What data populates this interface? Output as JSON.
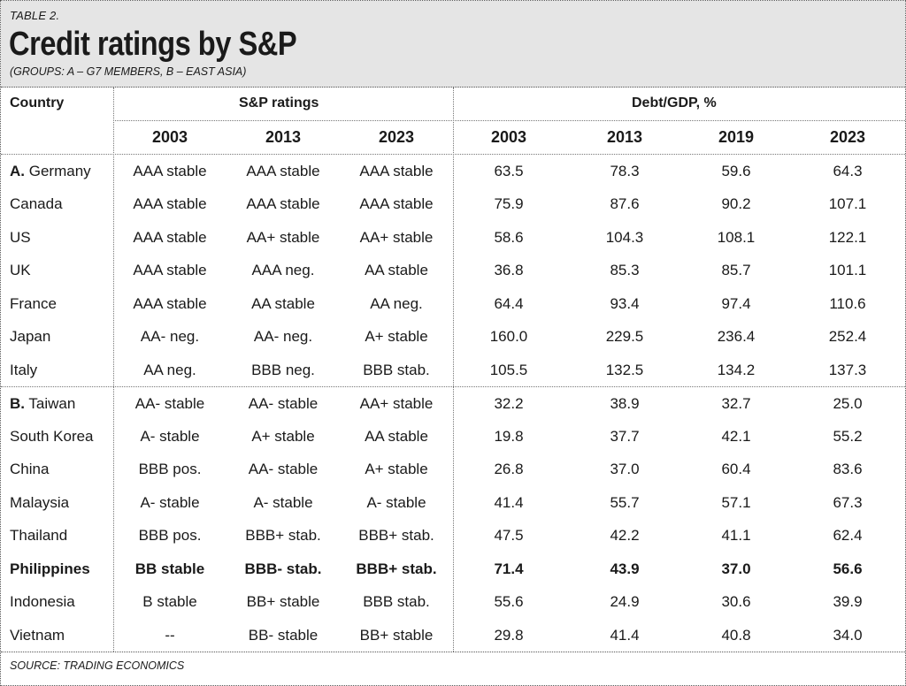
{
  "header": {
    "table_label": "TABLE 2.",
    "title": "Credit ratings by S&P",
    "subtitle": "(GROUPS: A – G7 MEMBERS, B – EAST ASIA)"
  },
  "columns": {
    "country": "Country",
    "ratings_group": "S&P ratings",
    "debt_group": "Debt/GDP, %",
    "rating_years": [
      "2003",
      "2013",
      "2023"
    ],
    "debt_years": [
      "2003",
      "2013",
      "2019",
      "2023"
    ]
  },
  "rows": [
    {
      "group": "A.",
      "country": "Germany",
      "ratings": [
        "AAA stable",
        "AAA stable",
        "AAA stable"
      ],
      "debt": [
        "63.5",
        "78.3",
        "59.6",
        "64.3"
      ]
    },
    {
      "group": "",
      "country": "Canada",
      "ratings": [
        "AAA stable",
        "AAA stable",
        "AAA stable"
      ],
      "debt": [
        "75.9",
        "87.6",
        "90.2",
        "107.1"
      ]
    },
    {
      "group": "",
      "country": "US",
      "ratings": [
        "AAA stable",
        "AA+ stable",
        "AA+ stable"
      ],
      "debt": [
        "58.6",
        "104.3",
        "108.1",
        "122.1"
      ]
    },
    {
      "group": "",
      "country": "UK",
      "ratings": [
        "AAA stable",
        "AAA neg.",
        "AA stable"
      ],
      "debt": [
        "36.8",
        "85.3",
        "85.7",
        "101.1"
      ]
    },
    {
      "group": "",
      "country": "France",
      "ratings": [
        "AAA stable",
        "AA stable",
        "AA neg."
      ],
      "debt": [
        "64.4",
        "93.4",
        "97.4",
        "110.6"
      ]
    },
    {
      "group": "",
      "country": "Japan",
      "ratings": [
        "AA- neg.",
        "AA- neg.",
        "A+ stable"
      ],
      "debt": [
        "160.0",
        "229.5",
        "236.4",
        "252.4"
      ]
    },
    {
      "group": "",
      "country": "Italy",
      "ratings": [
        "AA neg.",
        "BBB neg.",
        "BBB stab."
      ],
      "debt": [
        "105.5",
        "132.5",
        "134.2",
        "137.3"
      ]
    },
    {
      "group": "B.",
      "country": "Taiwan",
      "ratings": [
        "AA- stable",
        "AA- stable",
        "AA+ stable"
      ],
      "debt": [
        "32.2",
        "38.9",
        "32.7",
        "25.0"
      ]
    },
    {
      "group": "",
      "country": "South Korea",
      "ratings": [
        "A- stable",
        "A+ stable",
        "AA stable"
      ],
      "debt": [
        "19.8",
        "37.7",
        "42.1",
        "55.2"
      ]
    },
    {
      "group": "",
      "country": "China",
      "ratings": [
        "BBB pos.",
        "AA- stable",
        "A+ stable"
      ],
      "debt": [
        "26.8",
        "37.0",
        "60.4",
        "83.6"
      ]
    },
    {
      "group": "",
      "country": "Malaysia",
      "ratings": [
        "A- stable",
        "A- stable",
        "A- stable"
      ],
      "debt": [
        "41.4",
        "55.7",
        "57.1",
        "67.3"
      ]
    },
    {
      "group": "",
      "country": "Thailand",
      "ratings": [
        "BBB pos.",
        "BBB+ stab.",
        "BBB+ stab."
      ],
      "debt": [
        "47.5",
        "42.2",
        "41.1",
        "62.4"
      ]
    },
    {
      "group": "",
      "country": "Philippines",
      "bold": true,
      "ratings": [
        "BB stable",
        "BBB- stab.",
        "BBB+ stab."
      ],
      "debt": [
        "71.4",
        "43.9",
        "37.0",
        "56.6"
      ]
    },
    {
      "group": "",
      "country": "Indonesia",
      "ratings": [
        "B stable",
        "BB+ stable",
        "BBB stab."
      ],
      "debt": [
        "55.6",
        "24.9",
        "30.6",
        "39.9"
      ]
    },
    {
      "group": "",
      "country": "Vietnam",
      "ratings": [
        "--",
        "BB- stable",
        "BB+ stable"
      ],
      "debt": [
        "29.8",
        "41.4",
        "40.8",
        "34.0"
      ]
    }
  ],
  "footer": {
    "source": "SOURCE: TRADING ECONOMICS"
  }
}
